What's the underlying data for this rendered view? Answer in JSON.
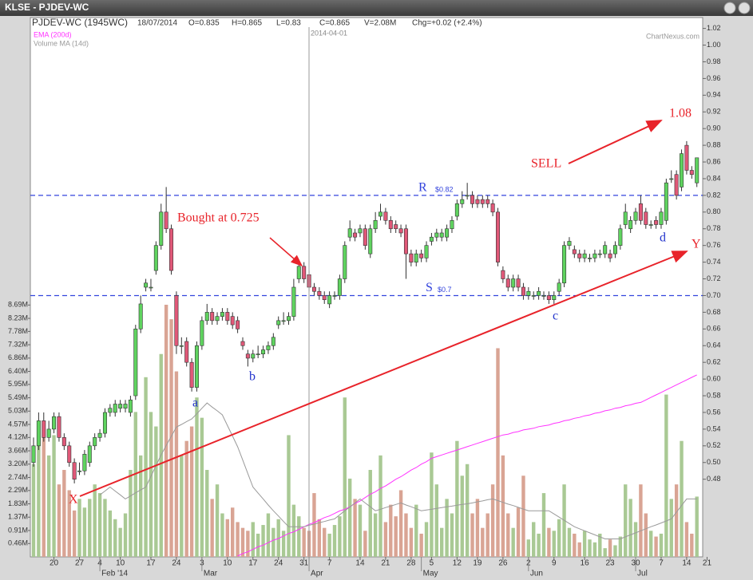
{
  "chart_data": {
    "type": "candlestick",
    "window_title": "KLSE - PJDEV-WC",
    "title": "PJDEV-WC (1945WC)",
    "date": "18/07/2014",
    "quote": [
      "O=0.835",
      "H=0.865",
      "L=0.83",
      "C=0.865",
      "V=2.08M",
      "Chg=+0.02 (+2.4%)"
    ],
    "source": "ChartNexus.com",
    "categories": [
      null,
      null,
      null,
      null,
      "20",
      null,
      null,
      null,
      null,
      "27",
      null,
      null,
      null,
      "4",
      null,
      null,
      null,
      "10",
      null,
      null,
      null,
      null,
      null,
      "17",
      null,
      null,
      null,
      null,
      "24",
      null,
      null,
      null,
      null,
      "3",
      null,
      null,
      null,
      null,
      "10",
      null,
      null,
      null,
      null,
      "17",
      null,
      null,
      null,
      null,
      "24",
      null,
      null,
      null,
      null,
      "31",
      null,
      null,
      null,
      null,
      "7",
      null,
      null,
      null,
      null,
      null,
      "14",
      null,
      null,
      null,
      null,
      "21",
      null,
      null,
      null,
      null,
      "28",
      null,
      null,
      null,
      "5",
      null,
      null,
      null,
      null,
      "12",
      null,
      null,
      null,
      "19",
      null,
      null,
      null,
      null,
      "26",
      null,
      null,
      null,
      null,
      "2",
      null,
      null,
      null,
      null,
      "9",
      null,
      null,
      null,
      null,
      null,
      "16",
      null,
      null,
      null,
      null,
      "23",
      null,
      null,
      null,
      null,
      "30",
      null,
      null,
      null,
      null,
      "7",
      null,
      null,
      null,
      null,
      "14",
      null,
      null,
      null,
      "21"
    ],
    "month_labels": [
      {
        "at": 13,
        "label": "Feb '14"
      },
      {
        "at": 33,
        "label": "Mar"
      },
      {
        "at": 54,
        "label": "Apr"
      },
      {
        "at": 76,
        "label": "May"
      },
      {
        "at": 97,
        "label": "Jun"
      },
      {
        "at": 118,
        "label": "Jul"
      }
    ],
    "open": [
      0.5,
      0.52,
      0.55,
      0.53,
      0.54,
      0.555,
      0.53,
      0.52,
      0.5,
      0.49,
      0.49,
      0.5,
      0.52,
      0.53,
      0.535,
      0.56,
      0.56,
      0.565,
      0.565,
      0.56,
      0.58,
      0.66,
      0.71,
      0.71,
      0.73,
      0.76,
      0.8,
      0.78,
      0.7,
      0.64,
      0.645,
      0.62,
      0.59,
      0.64,
      0.67,
      0.68,
      0.67,
      0.675,
      0.68,
      0.675,
      0.67,
      0.645,
      0.63,
      0.625,
      0.63,
      0.63,
      0.635,
      0.64,
      0.665,
      0.67,
      0.67,
      0.675,
      0.72,
      0.735,
      0.725,
      0.71,
      0.705,
      0.7,
      0.69,
      0.7,
      0.7,
      0.72,
      0.77,
      0.775,
      0.775,
      0.78,
      0.75,
      0.78,
      0.795,
      0.8,
      0.79,
      0.785,
      0.78,
      0.78,
      0.75,
      0.74,
      0.75,
      0.745,
      0.765,
      0.77,
      0.77,
      0.77,
      0.78,
      0.795,
      0.81,
      0.82,
      0.82,
      0.815,
      0.815,
      0.815,
      0.81,
      0.8,
      0.73,
      0.72,
      0.71,
      0.72,
      0.71,
      0.7,
      0.7,
      0.7,
      0.7,
      0.7,
      0.695,
      0.705,
      0.715,
      0.76,
      0.755,
      0.75,
      0.745,
      0.745,
      0.745,
      0.75,
      0.75,
      0.75,
      0.75,
      0.76,
      0.785,
      0.78,
      0.79,
      0.81,
      0.8,
      0.785,
      0.79,
      0.785,
      0.79,
      0.84,
      0.845,
      0.83,
      0.88,
      0.85,
      0.835,
      null,
      null
    ],
    "high": [
      0.53,
      0.56,
      0.56,
      0.55,
      0.56,
      0.56,
      0.535,
      0.525,
      0.505,
      0.5,
      0.515,
      0.525,
      0.535,
      0.54,
      0.565,
      0.57,
      0.575,
      0.575,
      0.575,
      0.58,
      0.665,
      0.7,
      0.72,
      0.72,
      0.765,
      0.81,
      0.83,
      0.785,
      0.705,
      0.65,
      0.65,
      0.625,
      0.645,
      0.675,
      0.69,
      0.685,
      0.68,
      0.685,
      0.685,
      0.68,
      0.675,
      0.65,
      0.635,
      0.635,
      0.64,
      0.64,
      0.645,
      0.655,
      0.675,
      0.68,
      0.68,
      0.72,
      0.74,
      0.74,
      0.73,
      0.715,
      0.71,
      0.705,
      0.705,
      0.705,
      0.725,
      0.765,
      0.79,
      0.78,
      0.785,
      0.785,
      0.785,
      0.8,
      0.81,
      0.805,
      0.795,
      0.79,
      0.785,
      0.785,
      0.755,
      0.755,
      0.755,
      0.765,
      0.775,
      0.78,
      0.78,
      0.785,
      0.795,
      0.815,
      0.825,
      0.835,
      0.825,
      0.82,
      0.82,
      0.82,
      0.815,
      0.805,
      0.735,
      0.725,
      0.725,
      0.725,
      0.715,
      0.71,
      0.705,
      0.71,
      0.705,
      0.705,
      0.705,
      0.72,
      0.765,
      0.77,
      0.76,
      0.755,
      0.755,
      0.75,
      0.755,
      0.755,
      0.765,
      0.755,
      0.765,
      0.785,
      0.81,
      0.795,
      0.805,
      0.82,
      0.805,
      0.79,
      0.795,
      0.805,
      0.84,
      0.85,
      0.85,
      0.875,
      0.885,
      0.855,
      0.865,
      null,
      null
    ],
    "low": [
      0.495,
      0.515,
      0.525,
      0.525,
      0.535,
      0.525,
      0.515,
      0.495,
      0.475,
      0.485,
      0.485,
      0.495,
      0.515,
      0.525,
      0.53,
      0.555,
      0.555,
      0.56,
      0.56,
      0.555,
      0.575,
      0.655,
      0.705,
      0.705,
      0.725,
      0.755,
      0.775,
      0.725,
      0.63,
      0.63,
      0.615,
      0.585,
      0.585,
      0.635,
      0.665,
      0.665,
      0.665,
      0.67,
      0.665,
      0.66,
      0.655,
      0.635,
      0.615,
      0.62,
      0.625,
      0.625,
      0.63,
      0.635,
      0.66,
      0.665,
      0.665,
      0.67,
      0.715,
      0.715,
      0.705,
      0.7,
      0.695,
      0.69,
      0.685,
      0.695,
      0.695,
      0.715,
      0.765,
      0.765,
      0.77,
      0.755,
      0.745,
      0.775,
      0.79,
      0.785,
      0.775,
      0.775,
      0.77,
      0.72,
      0.735,
      0.735,
      0.74,
      0.74,
      0.76,
      0.765,
      0.765,
      0.765,
      0.775,
      0.79,
      0.805,
      0.815,
      0.805,
      0.805,
      0.805,
      0.805,
      0.795,
      0.735,
      0.715,
      0.705,
      0.705,
      0.705,
      0.695,
      0.695,
      0.695,
      0.695,
      0.695,
      0.69,
      0.69,
      0.7,
      0.71,
      0.755,
      0.745,
      0.74,
      0.74,
      0.74,
      0.74,
      0.745,
      0.745,
      0.74,
      0.745,
      0.755,
      0.78,
      0.775,
      0.785,
      0.785,
      0.78,
      0.78,
      0.78,
      0.78,
      0.785,
      0.835,
      0.815,
      0.825,
      0.845,
      0.84,
      0.83,
      null,
      null
    ],
    "close": [
      0.52,
      0.55,
      0.53,
      0.54,
      0.555,
      0.53,
      0.52,
      0.5,
      0.48,
      0.49,
      0.51,
      0.52,
      0.53,
      0.535,
      0.56,
      0.565,
      0.57,
      0.57,
      0.57,
      0.575,
      0.66,
      0.69,
      0.715,
      0.71,
      0.76,
      0.8,
      0.78,
      0.73,
      0.64,
      0.64,
      0.62,
      0.59,
      0.64,
      0.67,
      0.68,
      0.67,
      0.675,
      0.68,
      0.67,
      0.665,
      0.66,
      0.64,
      0.625,
      0.63,
      0.63,
      0.635,
      0.64,
      0.65,
      0.67,
      0.67,
      0.675,
      0.71,
      0.735,
      0.72,
      0.71,
      0.705,
      0.7,
      0.695,
      0.7,
      0.7,
      0.72,
      0.76,
      0.78,
      0.77,
      0.78,
      0.76,
      0.78,
      0.79,
      0.8,
      0.79,
      0.78,
      0.78,
      0.775,
      0.75,
      0.74,
      0.75,
      0.745,
      0.76,
      0.77,
      0.775,
      0.775,
      0.78,
      0.79,
      0.81,
      0.815,
      0.82,
      0.81,
      0.81,
      0.81,
      0.81,
      0.8,
      0.74,
      0.72,
      0.71,
      0.72,
      0.71,
      0.7,
      0.705,
      0.7,
      0.705,
      0.7,
      0.695,
      0.7,
      0.715,
      0.76,
      0.765,
      0.75,
      0.745,
      0.75,
      0.745,
      0.75,
      0.75,
      0.76,
      0.745,
      0.76,
      0.78,
      0.8,
      0.79,
      0.8,
      0.79,
      0.785,
      0.785,
      0.785,
      0.8,
      0.835,
      0.84,
      0.82,
      0.87,
      0.85,
      0.845,
      0.865,
      null,
      null
    ],
    "up_color": "#5fd35f",
    "down_color": "#e05878",
    "volume": {
      "up_color": "#a9c994",
      "down_color": "#d9a494",
      "values": [
        3.2,
        4.2,
        4.6,
        3.5,
        4.2,
        2.5,
        3.0,
        2.3,
        1.6,
        2.0,
        1.7,
        2.0,
        2.5,
        2.2,
        2.0,
        1.6,
        1.3,
        1.0,
        1.5,
        3.0,
        5.0,
        3.5,
        6.2,
        5.0,
        4.5,
        7.0,
        8.7,
        8.2,
        6.4,
        3.5,
        4.0,
        4.5,
        5.5,
        4.8,
        3.0,
        2.0,
        2.5,
        1.5,
        1.3,
        1.7,
        1.2,
        1.0,
        0.9,
        1.2,
        0.8,
        1.1,
        1.5,
        1.0,
        1.3,
        0.9,
        4.2,
        1.8,
        1.4,
        1.0,
        0.9,
        2.2,
        1.3,
        1.0,
        0.8,
        1.1,
        1.4,
        5.5,
        2.7,
        2.0,
        1.8,
        0.9,
        3.0,
        1.5,
        3.5,
        1.2,
        1.8,
        1.4,
        2.3,
        1.5,
        1.0,
        1.8,
        0.8,
        1.2,
        3.6,
        2.5,
        1.0,
        2.0,
        1.5,
        4.0,
        2.8,
        3.2,
        1.5,
        2.0,
        1.0,
        1.5,
        2.5,
        7.2,
        3.5,
        1.5,
        1.0,
        1.7,
        2.8,
        0.6,
        1.2,
        0.8,
        2.2,
        1.0,
        0.9,
        1.3,
        2.5,
        1.0,
        0.8,
        0.5,
        0.9,
        0.6,
        0.5,
        0.8,
        0.3,
        0.6,
        0.4,
        0.7,
        2.5,
        2.0,
        1.2,
        2.5,
        1.5,
        0.9,
        0.7,
        0.8,
        5.6,
        2.0,
        2.5,
        4.0,
        1.2,
        0.8,
        2.08,
        null,
        null
      ]
    },
    "lines": [
      {
        "name": "EMA (200d)",
        "color": "#ff33ff",
        "values": [
          null,
          null,
          null,
          null,
          null,
          null,
          null,
          null,
          null,
          null,
          null,
          null,
          null,
          null,
          null,
          null,
          null,
          null,
          null,
          null,
          null,
          null,
          null,
          null,
          null,
          null,
          null,
          null,
          null,
          null,
          null,
          null,
          null,
          null,
          null,
          null,
          null,
          null,
          null,
          null,
          0.388,
          0.391,
          0.393,
          0.396,
          0.399,
          0.401,
          0.404,
          0.407,
          0.409,
          0.412,
          0.415,
          0.417,
          0.42,
          0.423,
          0.426,
          0.428,
          0.431,
          0.434,
          0.436,
          0.439,
          0.442,
          0.444,
          0.447,
          0.451,
          0.454,
          0.458,
          0.462,
          0.465,
          0.469,
          0.472,
          0.476,
          0.48,
          0.483,
          0.487,
          0.491,
          0.494,
          0.498,
          0.501,
          0.505,
          0.507,
          0.509,
          0.511,
          0.513,
          0.515,
          0.517,
          0.519,
          0.521,
          0.523,
          0.525,
          0.527,
          0.529,
          0.531,
          0.533,
          0.534,
          0.536,
          0.537,
          0.539,
          0.54,
          0.541,
          0.543,
          0.544,
          0.545,
          0.547,
          0.548,
          0.55,
          0.551,
          0.553,
          0.554,
          0.556,
          0.557,
          0.559,
          0.56,
          0.562,
          0.563,
          0.565,
          0.566,
          0.568,
          0.569,
          0.571,
          0.572,
          0.575,
          0.578,
          0.581,
          0.584,
          0.587,
          0.59,
          0.593,
          0.596,
          0.599,
          0.602,
          0.605,
          null,
          null
        ]
      },
      {
        "name": "Volume MA (14d)",
        "color": "#9a9a9a",
        "axis": "y2",
        "values": [
          null,
          null,
          null,
          null,
          null,
          null,
          null,
          null,
          null,
          null,
          null,
          null,
          null,
          2.14,
          2.27,
          2.41,
          2.27,
          2.14,
          2.0,
          2.1,
          2.21,
          2.31,
          2.41,
          2.78,
          3.15,
          3.52,
          3.84,
          4.16,
          4.48,
          4.57,
          4.67,
          4.76,
          4.94,
          5.13,
          5.31,
          5.17,
          5.04,
          4.9,
          4.53,
          4.17,
          3.8,
          3.34,
          2.87,
          2.41,
          2.2,
          2.0,
          1.79,
          1.59,
          1.41,
          1.22,
          1.04,
          1.04,
          1.04,
          1.04,
          1.09,
          1.13,
          1.18,
          1.22,
          1.27,
          1.31,
          1.45,
          1.59,
          1.72,
          1.86,
          2.0,
          1.86,
          1.73,
          1.59,
          1.64,
          1.7,
          1.75,
          1.81,
          1.86,
          1.79,
          1.73,
          1.66,
          1.59,
          1.62,
          1.64,
          1.67,
          1.7,
          1.73,
          1.75,
          1.78,
          1.81,
          1.83,
          1.86,
          1.9,
          1.93,
          1.97,
          2.0,
          1.94,
          1.88,
          1.82,
          1.77,
          1.71,
          1.65,
          1.59,
          1.59,
          1.59,
          1.59,
          1.59,
          1.48,
          1.37,
          1.26,
          1.15,
          1.04,
          0.97,
          0.9,
          0.83,
          0.76,
          0.69,
          0.62,
          0.62,
          0.62,
          0.62,
          0.69,
          0.76,
          0.83,
          0.9,
          0.97,
          1.04,
          1.1,
          1.17,
          1.24,
          1.31,
          1.54,
          1.77,
          2.0,
          2.0,
          2.0,
          null,
          null
        ]
      }
    ],
    "ylim": [
      0.387,
      1.033
    ],
    "yticks": [
      0.48,
      {
        "value": 0.5,
        "label": "0.50"
      },
      0.52,
      0.54,
      0.56,
      0.58,
      {
        "value": 0.6,
        "label": "0.60"
      },
      0.62,
      0.64,
      0.66,
      0.68,
      {
        "value": 0.7,
        "label": "0.70"
      },
      0.72,
      0.74,
      0.76,
      0.78,
      {
        "value": 0.8,
        "label": "0.80"
      },
      0.82,
      0.84,
      0.86,
      0.88,
      {
        "value": 0.9,
        "label": "0.90"
      },
      0.92,
      0.94,
      0.96,
      0.98,
      {
        "value": 1,
        "label": "1.00"
      },
      1.02
    ],
    "y2lim": [
      0,
      18.61
    ],
    "y2ticks": [
      {
        "value": 0.46,
        "label": "0.46M"
      },
      {
        "value": 0.91,
        "label": "0.91M"
      },
      {
        "value": 1.37,
        "label": "1.37M"
      },
      {
        "value": 1.83,
        "label": "1.83M"
      },
      {
        "value": 2.29,
        "label": "2.29M"
      },
      {
        "value": 2.74,
        "label": "2.74M"
      },
      {
        "value": 3.2,
        "label": "3.20M"
      },
      {
        "value": 3.66,
        "label": "3.66M"
      },
      {
        "value": 4.12,
        "label": "4.12M"
      },
      {
        "value": 4.57,
        "label": "4.57M"
      },
      {
        "value": 5.03,
        "label": "5.03M"
      },
      {
        "value": 5.49,
        "label": "5.49M"
      },
      {
        "value": 5.95,
        "label": "5.95M"
      },
      {
        "value": 6.4,
        "label": "6.40M"
      },
      {
        "value": 6.86,
        "label": "6.86M"
      },
      {
        "value": 7.32,
        "label": "7.32M"
      },
      {
        "value": 7.78,
        "label": "7.78M"
      },
      {
        "value": 8.23,
        "label": "8.23M"
      },
      {
        "value": 8.69,
        "label": "8.69M"
      }
    ],
    "levels": [
      {
        "letter": "R",
        "value": 0.82,
        "label": "$0.82",
        "color": "#3344dd"
      },
      {
        "letter": "S",
        "value": 0.7,
        "label": "$0.7",
        "color": "#3344dd"
      }
    ],
    "marker_label": "2014-04-01",
    "annotations": {
      "bought": "Bought at 0.725",
      "sell": "SELL",
      "target": "1.08",
      "x": "X",
      "y": "Y",
      "a": "a",
      "b": "b",
      "c": "c",
      "d": "d"
    }
  }
}
